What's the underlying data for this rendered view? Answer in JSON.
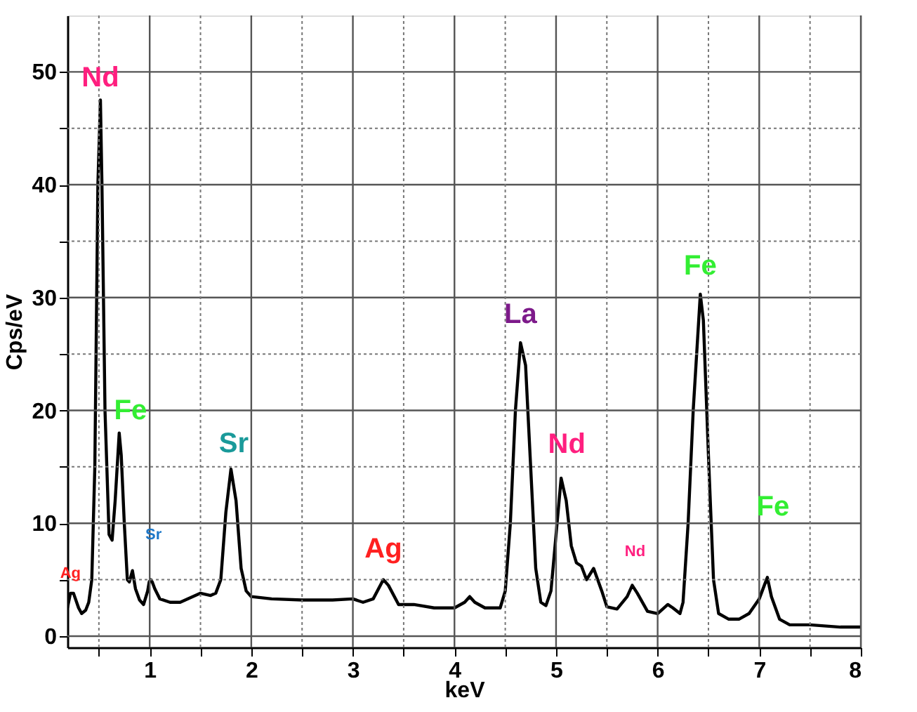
{
  "chart_data": {
    "type": "line",
    "xlabel": "keV",
    "ylabel": "Cps/eV",
    "x": [
      0.19,
      0.22,
      0.25,
      0.3,
      0.33,
      0.37,
      0.4,
      0.43,
      0.46,
      0.49,
      0.515,
      0.53,
      0.56,
      0.6,
      0.63,
      0.66,
      0.7,
      0.72,
      0.75,
      0.78,
      0.8,
      0.83,
      0.86,
      0.9,
      0.94,
      0.98,
      0.995,
      1.01,
      1.025,
      1.05,
      1.1,
      1.2,
      1.3,
      1.4,
      1.5,
      1.6,
      1.65,
      1.7,
      1.75,
      1.8,
      1.85,
      1.9,
      1.95,
      2.0,
      2.2,
      2.5,
      2.8,
      3.0,
      3.1,
      3.2,
      3.3,
      3.35,
      3.45,
      3.6,
      3.8,
      4.0,
      4.1,
      4.15,
      4.2,
      4.3,
      4.45,
      4.5,
      4.55,
      4.6,
      4.65,
      4.7,
      4.75,
      4.8,
      4.85,
      4.9,
      4.95,
      5.0,
      5.05,
      5.1,
      5.15,
      5.2,
      5.25,
      5.3,
      5.37,
      5.45,
      5.5,
      5.6,
      5.7,
      5.75,
      5.8,
      5.9,
      6.0,
      6.1,
      6.15,
      6.22,
      6.25,
      6.3,
      6.35,
      6.42,
      6.45,
      6.5,
      6.55,
      6.6,
      6.7,
      6.8,
      6.9,
      7.0,
      7.05,
      7.08,
      7.12,
      7.2,
      7.3,
      7.5,
      7.8,
      8.0
    ],
    "series": [
      {
        "color": "#000000",
        "values": [
          2.5,
          3.8,
          3.8,
          2.5,
          2.0,
          2.3,
          3.0,
          5,
          15,
          40,
          47.5,
          40,
          20,
          9,
          8.5,
          12,
          18,
          16,
          10,
          5,
          4.8,
          5.8,
          4.2,
          3.2,
          2.8,
          4,
          4.8,
          5,
          4.8,
          4.2,
          3.3,
          3.0,
          3.0,
          3.4,
          3.8,
          3.6,
          3.8,
          5,
          11,
          14.8,
          12,
          6,
          4,
          3.5,
          3.3,
          3.2,
          3.2,
          3.3,
          3.0,
          3.3,
          5,
          4.5,
          2.8,
          2.8,
          2.5,
          2.5,
          3,
          3.5,
          3.0,
          2.5,
          2.5,
          4,
          10,
          20,
          26,
          24,
          15,
          6,
          3,
          2.7,
          4,
          9,
          14,
          12,
          8,
          6.5,
          6.2,
          5,
          6,
          4,
          2.6,
          2.4,
          3.5,
          4.5,
          3.8,
          2.2,
          2.0,
          2.8,
          2.5,
          2.0,
          3,
          10,
          20,
          30.3,
          28,
          16,
          5,
          2,
          1.5,
          1.5,
          2,
          3.3,
          4.5,
          5.2,
          3.5,
          1.5,
          1.0,
          1.0,
          0.8,
          0.8
        ]
      }
    ],
    "xlim": [
      0.19,
      8
    ],
    "ylim": [
      -1,
      55
    ],
    "xticks": [
      {
        "value": 0.5,
        "label": null
      },
      1,
      {
        "value": 1.5,
        "label": null
      },
      2,
      {
        "value": 2.5,
        "label": null
      },
      3,
      {
        "value": 3.5,
        "label": null
      },
      4,
      {
        "value": 4.5,
        "label": null
      },
      5,
      {
        "value": 5.5,
        "label": null
      },
      6,
      {
        "value": 6.5,
        "label": null
      },
      7,
      {
        "value": 7.5,
        "label": null
      },
      8
    ],
    "yticks": [
      0,
      {
        "value": 5,
        "label": null
      },
      10,
      {
        "value": 15,
        "label": null
      },
      20,
      {
        "value": 25,
        "label": null
      },
      30,
      {
        "value": 35,
        "label": null
      },
      40,
      {
        "value": 45,
        "label": null
      },
      50
    ],
    "grid": true,
    "marker": "none",
    "line_style": "solid",
    "annotations": [
      {
        "text": "Nd",
        "x": 0.515,
        "y": 47.5
      },
      {
        "text": "Fe",
        "x": 0.7,
        "y": 18
      },
      {
        "text": "Ag",
        "x": 0.22,
        "y": 3.8
      },
      {
        "text": "Sr",
        "x": 1.01,
        "y": 5
      },
      {
        "text": "Sr",
        "x": 1.8,
        "y": 14.8
      },
      {
        "text": "Ag",
        "x": 3.3,
        "y": 5
      },
      {
        "text": "La",
        "x": 4.65,
        "y": 26
      },
      {
        "text": "Nd",
        "x": 5.05,
        "y": 14
      },
      {
        "text": "Nd",
        "x": 5.75,
        "y": 4.5
      },
      {
        "text": "Fe",
        "x": 6.42,
        "y": 30.3
      },
      {
        "text": "Fe",
        "x": 7.08,
        "y": 5.2
      }
    ]
  }
}
